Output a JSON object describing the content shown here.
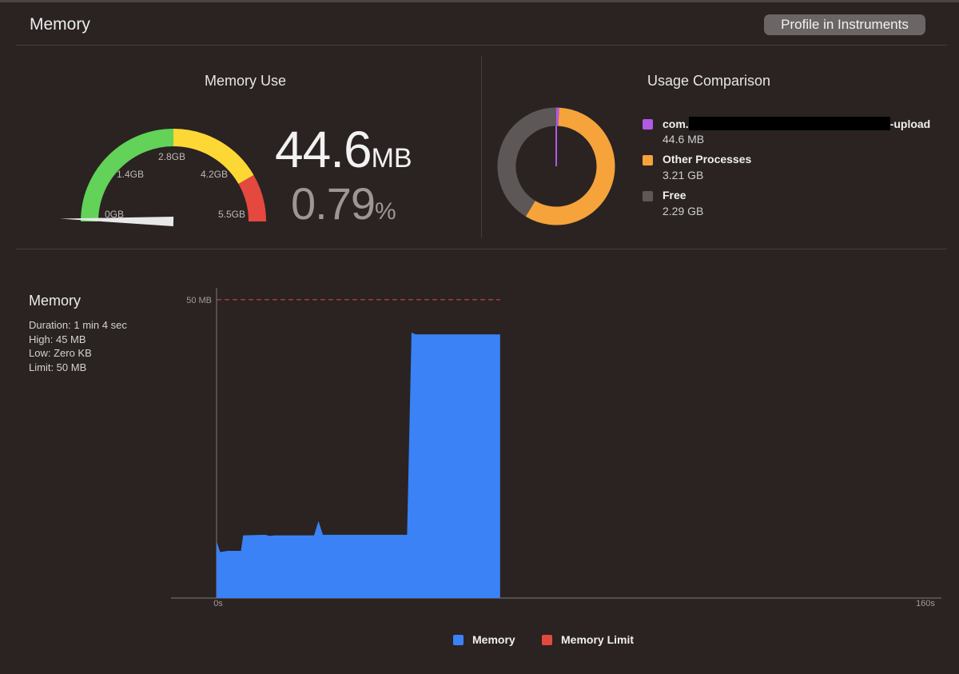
{
  "header": {
    "title": "Memory",
    "profile_button": "Profile in Instruments"
  },
  "memory_use": {
    "title": "Memory Use",
    "value": "44.6",
    "unit": "MB",
    "percent": "0.79",
    "percent_unit": "%",
    "gauge_labels": [
      "0GB",
      "1.4GB",
      "2.8GB",
      "4.2GB",
      "5.5GB"
    ],
    "gauge_fraction": 0.0079,
    "colors": {
      "green": "#62d258",
      "yellow": "#fdd835",
      "red": "#e5483e"
    }
  },
  "usage_comparison": {
    "title": "Usage Comparison",
    "items": [
      {
        "name_prefix": "com.",
        "name_suffix": "-upload",
        "value": "44.6 MB",
        "color": "#b259e6",
        "gb": 0.0446
      },
      {
        "name": "Other Processes",
        "value": "3.21 GB",
        "color": "#f5a33a",
        "gb": 3.21
      },
      {
        "name": "Free",
        "value": "2.29 GB",
        "color": "#5d5857",
        "gb": 2.29
      }
    ]
  },
  "memory_chart_panel": {
    "title": "Memory",
    "stats": [
      "Duration: 1 min 4 sec",
      "High: 45 MB",
      "Low: Zero KB",
      "Limit: 50 MB"
    ]
  },
  "chart_data": {
    "type": "area",
    "x_unit": "s",
    "y_unit": "MB",
    "xlim": [
      0,
      160
    ],
    "ylim": [
      0,
      52
    ],
    "x_tick_labels": [
      "0s",
      "160s"
    ],
    "y_tick_labels": [
      "50 MB"
    ],
    "limit": 50,
    "series": [
      {
        "name": "Memory",
        "color": "#3a82f6",
        "points": [
          [
            0,
            9.5
          ],
          [
            0.8,
            7.7
          ],
          [
            2.5,
            7.9
          ],
          [
            4,
            7.9
          ],
          [
            5.5,
            7.9
          ],
          [
            6,
            10.5
          ],
          [
            11,
            10.6
          ],
          [
            12,
            10.4
          ],
          [
            13,
            10.5
          ],
          [
            22,
            10.5
          ],
          [
            23,
            12.9
          ],
          [
            24,
            10.6
          ],
          [
            43,
            10.6
          ],
          [
            44,
            44.5
          ],
          [
            45,
            44.2
          ],
          [
            64,
            44.2
          ]
        ]
      },
      {
        "name": "Memory Limit",
        "color": "#e5483e",
        "values": [
          50
        ]
      }
    ],
    "grid": false,
    "legend": "bottom-center"
  }
}
